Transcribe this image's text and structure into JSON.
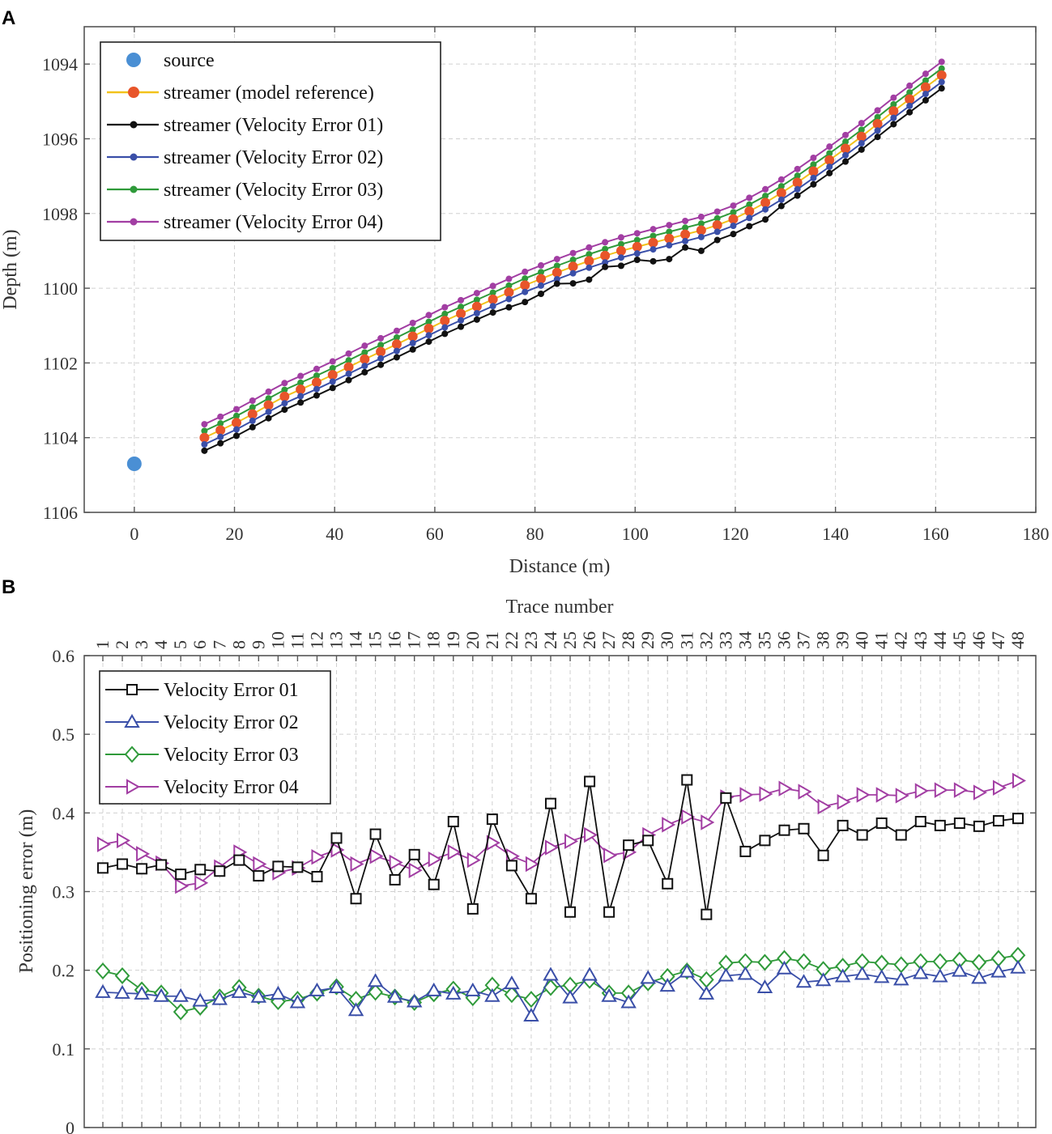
{
  "chart_data": [
    {
      "panel": "A",
      "type": "line",
      "title": "",
      "xlabel": "Distance (m)",
      "ylabel": "Depth (m)",
      "xlim": [
        -10,
        180
      ],
      "ylim": [
        1106,
        1093
      ],
      "y_inverted": true,
      "xticks": [
        0,
        20,
        40,
        60,
        80,
        100,
        120,
        140,
        160,
        180
      ],
      "yticks": [
        1094,
        1096,
        1098,
        1100,
        1102,
        1104,
        1106
      ],
      "grid": true,
      "legend_position": "top-left",
      "x": [
        14.0,
        17.2,
        20.4,
        23.6,
        26.8,
        30.0,
        33.2,
        36.4,
        39.6,
        42.8,
        46.0,
        49.2,
        52.4,
        55.6,
        58.8,
        62.0,
        65.2,
        68.4,
        71.6,
        74.8,
        78.0,
        81.2,
        84.4,
        87.6,
        90.8,
        94.0,
        97.2,
        100.4,
        103.6,
        106.8,
        110.0,
        113.2,
        116.4,
        119.6,
        122.8,
        126.0,
        129.2,
        132.4,
        135.6,
        138.8,
        142.0,
        145.2,
        148.4,
        151.6,
        154.8,
        158.0,
        161.2
      ],
      "source": {
        "name": "source",
        "color": "#4a8fd4",
        "x": 0,
        "y": 1104.7
      },
      "reference": {
        "name": "streamer (model reference)",
        "line_color": "#f2c21b",
        "marker_color": "#e8552a",
        "y": [
          1104.0,
          1103.8,
          1103.6,
          1103.37,
          1103.13,
          1102.9,
          1102.71,
          1102.52,
          1102.32,
          1102.11,
          1101.9,
          1101.7,
          1101.5,
          1101.29,
          1101.08,
          1100.87,
          1100.68,
          1100.49,
          1100.3,
          1100.11,
          1099.92,
          1099.75,
          1099.58,
          1099.42,
          1099.27,
          1099.13,
          1099.0,
          1098.89,
          1098.78,
          1098.67,
          1098.56,
          1098.45,
          1098.31,
          1098.15,
          1097.94,
          1097.71,
          1097.45,
          1097.17,
          1096.87,
          1096.57,
          1096.26,
          1095.94,
          1095.6,
          1095.26,
          1094.94,
          1094.62,
          1094.3
        ]
      },
      "series": [
        {
          "name": "streamer (Velocity Error 01)",
          "color": "#111111",
          "offset": 0.35,
          "jitter": [
            0,
            0,
            0,
            0,
            0,
            0,
            0,
            0,
            0,
            0,
            0,
            0,
            0,
            0,
            0,
            0,
            0,
            0,
            0,
            0.05,
            0.1,
            0.05,
            -0.05,
            0.1,
            0.15,
            -0.05,
            0.05,
            0,
            0.15,
            0.2,
            0,
            0.2,
            0.05,
            0.05,
            0.05,
            0.1,
            0,
            0,
            0,
            0,
            0,
            0,
            0,
            0,
            0,
            0,
            0
          ]
        },
        {
          "name": "streamer (Velocity Error 02)",
          "color": "#3a4fa8",
          "offset": 0.18
        },
        {
          "name": "streamer (Velocity Error 03)",
          "color": "#2f9a3a",
          "offset": -0.18
        },
        {
          "name": "streamer (Velocity Error 04)",
          "color": "#a23ea3",
          "offset": -0.36
        }
      ]
    },
    {
      "panel": "B",
      "type": "line",
      "title": "",
      "xlabel": "Trace number",
      "ylabel": "Positioning error (m)",
      "ylim": [
        0,
        0.6
      ],
      "yticks": [
        0,
        0.1,
        0.2,
        0.3,
        0.4,
        0.5,
        0.6
      ],
      "ytick_labels": [
        "0",
        "0.1",
        "0.2",
        "0.3",
        "0.4",
        "0.5",
        "0.6"
      ],
      "x_axis_position": "top",
      "grid": true,
      "legend_position": "top-left",
      "categories": [
        "1",
        "2",
        "3",
        "4",
        "5",
        "6",
        "7",
        "8",
        "9",
        "10",
        "11",
        "12",
        "13",
        "14",
        "15",
        "16",
        "17",
        "18",
        "19",
        "20",
        "21",
        "22",
        "23",
        "24",
        "25",
        "26",
        "27",
        "28",
        "29",
        "30",
        "31",
        "32",
        "33",
        "34",
        "35",
        "36",
        "37",
        "38",
        "39",
        "40",
        "41",
        "42",
        "43",
        "44",
        "45",
        "46",
        "47",
        "48"
      ],
      "series": [
        {
          "name": "Velocity Error 01",
          "color": "#111111",
          "marker": "square",
          "values": [
            0.33,
            0.335,
            0.329,
            0.334,
            0.322,
            0.328,
            0.326,
            0.34,
            0.32,
            0.332,
            0.331,
            0.319,
            0.368,
            0.291,
            0.373,
            0.315,
            0.347,
            0.309,
            0.389,
            0.278,
            0.392,
            0.333,
            0.291,
            0.412,
            0.274,
            0.44,
            0.274,
            0.359,
            0.365,
            0.31,
            0.442,
            0.271,
            0.419,
            0.351,
            0.365,
            0.378,
            0.38,
            0.346,
            0.384,
            0.372,
            0.387,
            0.372,
            0.389,
            0.384,
            0.387,
            0.383,
            0.39,
            0.393
          ]
        },
        {
          "name": "Velocity Error 02",
          "color": "#3a4fa8",
          "marker": "triangle",
          "values": [
            0.172,
            0.171,
            0.17,
            0.167,
            0.167,
            0.161,
            0.163,
            0.172,
            0.166,
            0.17,
            0.159,
            0.174,
            0.178,
            0.149,
            0.186,
            0.166,
            0.16,
            0.174,
            0.17,
            0.174,
            0.167,
            0.183,
            0.142,
            0.194,
            0.165,
            0.194,
            0.167,
            0.159,
            0.19,
            0.18,
            0.198,
            0.17,
            0.193,
            0.195,
            0.178,
            0.202,
            0.185,
            0.187,
            0.192,
            0.195,
            0.191,
            0.188,
            0.196,
            0.192,
            0.199,
            0.19,
            0.198,
            0.203
          ]
        },
        {
          "name": "Velocity Error 03",
          "color": "#2f9a3a",
          "marker": "diamond",
          "values": [
            0.199,
            0.193,
            0.175,
            0.171,
            0.147,
            0.153,
            0.166,
            0.178,
            0.167,
            0.16,
            0.163,
            0.171,
            0.179,
            0.163,
            0.172,
            0.166,
            0.159,
            0.17,
            0.176,
            0.165,
            0.181,
            0.169,
            0.163,
            0.178,
            0.181,
            0.187,
            0.171,
            0.171,
            0.184,
            0.192,
            0.199,
            0.188,
            0.209,
            0.211,
            0.21,
            0.215,
            0.211,
            0.201,
            0.205,
            0.211,
            0.209,
            0.207,
            0.211,
            0.211,
            0.213,
            0.21,
            0.215,
            0.219
          ]
        },
        {
          "name": "Velocity Error 04",
          "color": "#a23ea3",
          "marker": "triangle-right",
          "values": [
            0.36,
            0.365,
            0.348,
            0.336,
            0.307,
            0.311,
            0.331,
            0.35,
            0.335,
            0.324,
            0.33,
            0.344,
            0.353,
            0.335,
            0.345,
            0.337,
            0.327,
            0.341,
            0.35,
            0.34,
            0.362,
            0.345,
            0.335,
            0.356,
            0.364,
            0.372,
            0.346,
            0.35,
            0.372,
            0.385,
            0.395,
            0.388,
            0.42,
            0.423,
            0.424,
            0.431,
            0.427,
            0.408,
            0.414,
            0.423,
            0.423,
            0.422,
            0.428,
            0.429,
            0.429,
            0.426,
            0.432,
            0.441
          ]
        }
      ]
    }
  ]
}
